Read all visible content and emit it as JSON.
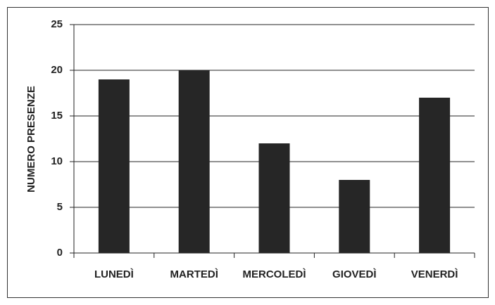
{
  "chart_data": {
    "type": "bar",
    "y_label": "NUMERO PRESENZE",
    "categories": [
      "LUNEDÌ",
      "MARTEDÌ",
      "MERCOLEDÌ",
      "GIOVEDÌ",
      "VENERDÌ"
    ],
    "values": [
      19,
      20,
      12,
      8,
      17
    ],
    "color": "#262626",
    "ylim": [
      0,
      25
    ],
    "yticks": [
      0,
      5,
      10,
      15,
      20,
      25
    ],
    "grid": true
  }
}
